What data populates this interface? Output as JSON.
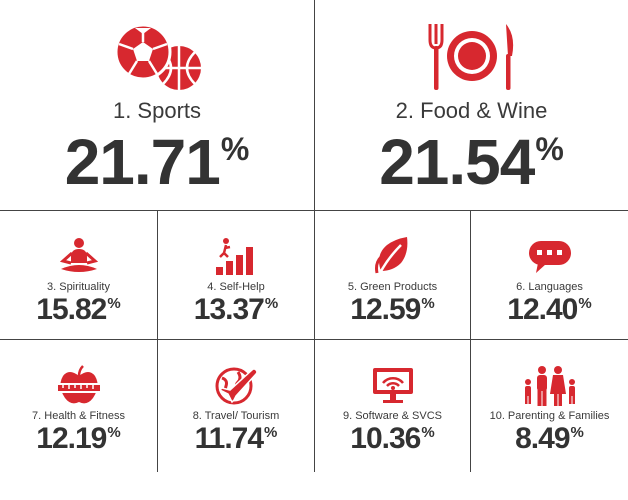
{
  "accent_color": "#d7282f",
  "top": [
    {
      "label": "1. Sports",
      "number": "21.71",
      "unit": "%",
      "icon": "sports-balls-icon"
    },
    {
      "label": "2. Food & Wine",
      "number": "21.54",
      "unit": "%",
      "icon": "plate-cutlery-icon"
    }
  ],
  "row2": [
    {
      "label": "3. Spirituality",
      "number": "15.82",
      "unit": "%",
      "icon": "meditation-icon"
    },
    {
      "label": "4. Self-Help",
      "number": "13.37",
      "unit": "%",
      "icon": "climbing-steps-icon"
    },
    {
      "label": "5. Green Products",
      "number": "12.59",
      "unit": "%",
      "icon": "leaf-icon"
    },
    {
      "label": "6. Languages",
      "number": "12.40",
      "unit": "%",
      "icon": "speech-bubble-icon"
    }
  ],
  "row3": [
    {
      "label": "7. Health & Fitness",
      "number": "12.19",
      "unit": "%",
      "icon": "apple-measuring-tape-icon"
    },
    {
      "label": "8. Travel/ Tourism",
      "number": "11.74",
      "unit": "%",
      "icon": "globe-airplane-icon"
    },
    {
      "label": "9. Software & SVCS",
      "number": "10.36",
      "unit": "%",
      "icon": "monitor-wifi-icon"
    },
    {
      "label": "10. Parenting & Families",
      "number": "8.49",
      "unit": "%",
      "icon": "family-icon"
    }
  ]
}
